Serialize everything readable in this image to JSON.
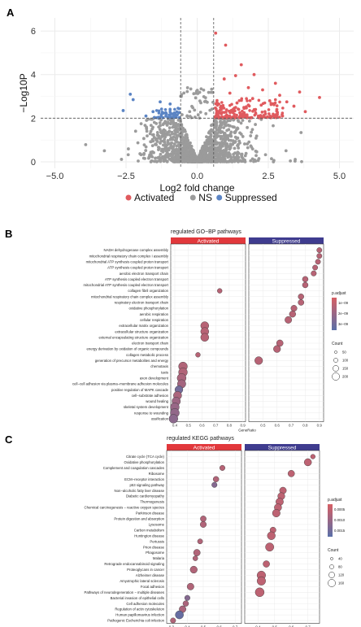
{
  "panels": {
    "a": "A",
    "b": "B",
    "c": "C"
  },
  "colors": {
    "activated": "#e05a5e",
    "ns": "#9b9b9b",
    "suppressed": "#5b84c4",
    "facet_activated": "#e2383c",
    "facet_suppressed": "#3f3c8f",
    "padj_high": "#d65f64",
    "padj_low": "#5a6fa8",
    "grid": "#ebebeb"
  },
  "chart_data": [
    {
      "type": "scatter",
      "xlabel": "Log2 fold change",
      "ylabel": "−Log10P",
      "xlim": [
        -5.5,
        5.5
      ],
      "ylim": [
        -0.3,
        6.6
      ],
      "xticks": [
        "−5.0",
        "−2.5",
        "0.0",
        "2.5",
        "5.0"
      ],
      "xtick_values": [
        -5,
        -2.5,
        0,
        2.5,
        5
      ],
      "yticks": [
        "0",
        "2",
        "4",
        "6"
      ],
      "ytick_values": [
        0,
        2,
        4,
        6
      ],
      "thresholds": {
        "x": [
          -0.58,
          0.58
        ],
        "y": 2
      },
      "grid": true,
      "legend_position": "bottom",
      "legend": [
        {
          "label": "Activated",
          "key": "activated"
        },
        {
          "label": "NS",
          "key": "ns"
        },
        {
          "label": "Suppressed",
          "key": "suppressed"
        }
      ],
      "highlight_points": {
        "activated": [
          [
            0.65,
            5.9
          ],
          [
            1.0,
            5.35
          ],
          [
            1.55,
            4.45
          ],
          [
            2.0,
            4.0
          ],
          [
            1.35,
            3.95
          ],
          [
            0.95,
            3.8
          ],
          [
            2.75,
            3.6
          ],
          [
            1.8,
            3.4
          ],
          [
            2.3,
            3.3
          ],
          [
            3.6,
            3.2
          ],
          [
            1.15,
            3.15
          ],
          [
            2.9,
            3.05
          ],
          [
            4.3,
            2.95
          ],
          [
            1.95,
            2.9
          ],
          [
            2.55,
            2.8
          ],
          [
            3.15,
            2.75
          ],
          [
            1.4,
            2.7
          ],
          [
            0.75,
            2.65
          ],
          [
            2.25,
            2.6
          ],
          [
            3.4,
            2.55
          ],
          [
            0.9,
            2.5
          ],
          [
            1.65,
            2.45
          ],
          [
            2.05,
            2.4
          ],
          [
            2.8,
            2.4
          ],
          [
            1.2,
            2.35
          ],
          [
            3.8,
            2.3
          ],
          [
            0.7,
            2.3
          ],
          [
            1.5,
            2.25
          ],
          [
            2.4,
            2.2
          ],
          [
            0.85,
            2.2
          ],
          [
            1.75,
            2.15
          ],
          [
            2.15,
            2.1
          ],
          [
            3.0,
            2.1
          ],
          [
            1.05,
            2.1
          ],
          [
            0.65,
            2.05
          ],
          [
            1.3,
            2.05
          ],
          [
            2.6,
            2.05
          ],
          [
            1.9,
            2.02
          ]
        ],
        "suppressed": [
          [
            -2.35,
            3.1
          ],
          [
            -2.25,
            2.85
          ],
          [
            -1.3,
            2.75
          ],
          [
            -0.95,
            2.65
          ],
          [
            -2.6,
            2.35
          ],
          [
            -1.55,
            2.3
          ],
          [
            -1.1,
            2.25
          ],
          [
            -0.8,
            2.2
          ],
          [
            -0.7,
            2.15
          ],
          [
            -1.8,
            2.1
          ],
          [
            -0.9,
            2.05
          ],
          [
            -1.2,
            2.02
          ]
        ]
      },
      "ns_description": "dense grey cloud of non-significant genes forming a V shape centred at 0"
    },
    {
      "type": "scatter",
      "title": "regulated GO−BP pathways",
      "facets": [
        "Activated",
        "Suppressed"
      ],
      "xlabel": "GeneRatio",
      "facet_xticks": [
        {
          "labels": [
            "0.4",
            "0.5",
            "0.6",
            "0.7",
            "0.8",
            "0.9"
          ],
          "values": [
            0.4,
            0.5,
            0.6,
            0.7,
            0.8,
            0.9
          ],
          "xlim": [
            0.37,
            0.92
          ]
        },
        {
          "labels": [
            "0.5",
            "0.6",
            "0.7",
            "0.8",
            "0.9"
          ],
          "values": [
            0.5,
            0.6,
            0.7,
            0.8,
            0.9
          ],
          "xlim": [
            0.4,
            0.93
          ]
        }
      ],
      "legend_color_title": "p.adjust",
      "legend_color_ticks": [
        "1e−09",
        "2e−09",
        "3e−09"
      ],
      "legend_size_title": "Count",
      "legend_size_ticks": [
        "50",
        "100",
        "150",
        "200"
      ],
      "categories": [
        "NADH dehydrogenase complex assembly",
        "mitochondrial respiratory chain complex I assembly",
        "mitochondrial ATP synthesis coupled proton transport",
        "ATP synthesis coupled proton transport",
        "aerobic electron transport chain",
        "ATP synthesis coupled electron transport",
        "mitochondrial ATP synthesis coupled electron transport",
        "collagen fibril organization",
        "mitochondrial respiratory chain complex assembly",
        "respiratory electron transport chain",
        "oxidative phosphorylation",
        "aerobic respiration",
        "cellular respiration",
        "extracellular matrix organization",
        "extracellular structure organization",
        "external encapsulating structure organization",
        "electron transport chain",
        "energy derivation by oxidation of organic compounds",
        "collagen metabolic process",
        "generation of precursor metabolites and energy",
        "chemotaxis",
        "taxis",
        "axon development",
        "cell−cell adhesion via plasma−membrane adhesion molecules",
        "positive regulation of MAPK cascade",
        "cell−substrate adhesion",
        "wound healing",
        "skeletal system development",
        "response to wounding",
        "ossification"
      ],
      "points": [
        {
          "facet": 1,
          "row": 0,
          "x": 0.9,
          "count": 40,
          "padj": 0.25
        },
        {
          "facet": 1,
          "row": 1,
          "x": 0.9,
          "count": 40,
          "padj": 0.25
        },
        {
          "facet": 1,
          "row": 2,
          "x": 0.89,
          "count": 40,
          "padj": 0.25
        },
        {
          "facet": 1,
          "row": 3,
          "x": 0.87,
          "count": 40,
          "padj": 0.25
        },
        {
          "facet": 1,
          "row": 4,
          "x": 0.86,
          "count": 45,
          "padj": 0.25
        },
        {
          "facet": 1,
          "row": 5,
          "x": 0.8,
          "count": 55,
          "padj": 0.25
        },
        {
          "facet": 1,
          "row": 6,
          "x": 0.8,
          "count": 55,
          "padj": 0.25
        },
        {
          "facet": 0,
          "row": 7,
          "x": 0.73,
          "count": 30,
          "padj": 0.25
        },
        {
          "facet": 1,
          "row": 8,
          "x": 0.77,
          "count": 55,
          "padj": 0.25
        },
        {
          "facet": 1,
          "row": 9,
          "x": 0.77,
          "count": 60,
          "padj": 0.25
        },
        {
          "facet": 1,
          "row": 10,
          "x": 0.72,
          "count": 70,
          "padj": 0.25
        },
        {
          "facet": 1,
          "row": 11,
          "x": 0.71,
          "count": 80,
          "padj": 0.25
        },
        {
          "facet": 1,
          "row": 12,
          "x": 0.68,
          "count": 100,
          "padj": 0.25
        },
        {
          "facet": 0,
          "row": 13,
          "x": 0.62,
          "count": 160,
          "padj": 0.25
        },
        {
          "facet": 0,
          "row": 14,
          "x": 0.62,
          "count": 160,
          "padj": 0.25
        },
        {
          "facet": 0,
          "row": 15,
          "x": 0.62,
          "count": 160,
          "padj": 0.25
        },
        {
          "facet": 1,
          "row": 16,
          "x": 0.62,
          "count": 90,
          "padj": 0.25
        },
        {
          "facet": 1,
          "row": 17,
          "x": 0.6,
          "count": 110,
          "padj": 0.25
        },
        {
          "facet": 0,
          "row": 18,
          "x": 0.57,
          "count": 30,
          "padj": 0.25
        },
        {
          "facet": 1,
          "row": 19,
          "x": 0.47,
          "count": 150,
          "padj": 0.25
        },
        {
          "facet": 0,
          "row": 20,
          "x": 0.46,
          "count": 200,
          "padj": 0.3
        },
        {
          "facet": 0,
          "row": 21,
          "x": 0.46,
          "count": 200,
          "padj": 0.3
        },
        {
          "facet": 0,
          "row": 22,
          "x": 0.45,
          "count": 210,
          "padj": 0.35
        },
        {
          "facet": 0,
          "row": 23,
          "x": 0.45,
          "count": 180,
          "padj": 0.4
        },
        {
          "facet": 0,
          "row": 24,
          "x": 0.43,
          "count": 150,
          "padj": 0.8
        },
        {
          "facet": 0,
          "row": 25,
          "x": 0.42,
          "count": 170,
          "padj": 0.35
        },
        {
          "facet": 0,
          "row": 26,
          "x": 0.41,
          "count": 180,
          "padj": 0.45
        },
        {
          "facet": 0,
          "row": 27,
          "x": 0.4,
          "count": 200,
          "padj": 0.5
        },
        {
          "facet": 0,
          "row": 28,
          "x": 0.4,
          "count": 210,
          "padj": 0.55
        },
        {
          "facet": 0,
          "row": 29,
          "x": 0.39,
          "count": 200,
          "padj": 0.6
        }
      ]
    },
    {
      "type": "scatter",
      "title": "regulated KEGG pathways",
      "facets": [
        "Activated",
        "Suppressed"
      ],
      "xlabel": "GeneRatio",
      "facet_xticks": [
        {
          "labels": [
            "0.3",
            "0.4",
            "0.5",
            "0.6",
            "0.7"
          ],
          "values": [
            0.3,
            0.4,
            0.5,
            0.6,
            0.7
          ],
          "xlim": [
            0.27,
            0.74
          ]
        },
        {
          "labels": [
            "0.4",
            "0.5",
            "0.6",
            "0.7"
          ],
          "values": [
            0.4,
            0.5,
            0.6,
            0.7
          ],
          "xlim": [
            0.32,
            0.77
          ]
        }
      ],
      "legend_color_title": "p.adjust",
      "legend_color_ticks": [
        "0.0005",
        "0.0010",
        "0.0015"
      ],
      "legend_size_title": "Count",
      "legend_size_ticks": [
        "40",
        "80",
        "120",
        "160"
      ],
      "categories": [
        "Citrate cycle (TCA cycle)",
        "Oxidative phosphorylation",
        "Complement and coagulation cascades",
        "Ribosome",
        "ECM−receptor interaction",
        "p53 signaling pathway",
        "Non−alcoholic fatty liver disease",
        "Diabetic cardiomyopathy",
        "Thermogenesis",
        "Chemical carcinogenesis − reactive oxygen species",
        "Parkinson disease",
        "Protein digestion and absorption",
        "Lysosome",
        "Carbon metabolism",
        "Huntington disease",
        "Pertussis",
        "Prion disease",
        "Phagosome",
        "Malaria",
        "Retrograde endocannabinoid signaling",
        "Proteoglycans in cancer",
        "Alzheimer disease",
        "Amyotrophic lateral sclerosis",
        "Focal adhesion",
        "Pathways of neurodegeneration − multiple diseases",
        "Bacterial invasion of epithelial cells",
        "Cell adhesion molecules",
        "Regulation of actin cytoskeleton",
        "Human papillomavirus infection",
        "Pathogenic Escherichia coli infection"
      ],
      "points": [
        {
          "facet": 1,
          "row": 0,
          "x": 0.73,
          "count": 25,
          "padj": 0.2
        },
        {
          "facet": 1,
          "row": 1,
          "x": 0.7,
          "count": 110,
          "padj": 0.2
        },
        {
          "facet": 0,
          "row": 2,
          "x": 0.62,
          "count": 40,
          "padj": 0.25
        },
        {
          "facet": 1,
          "row": 3,
          "x": 0.6,
          "count": 80,
          "padj": 0.2
        },
        {
          "facet": 0,
          "row": 4,
          "x": 0.58,
          "count": 50,
          "padj": 0.3
        },
        {
          "facet": 0,
          "row": 5,
          "x": 0.57,
          "count": 40,
          "padj": 0.65
        },
        {
          "facet": 1,
          "row": 6,
          "x": 0.55,
          "count": 90,
          "padj": 0.2
        },
        {
          "facet": 1,
          "row": 7,
          "x": 0.54,
          "count": 100,
          "padj": 0.2
        },
        {
          "facet": 1,
          "row": 8,
          "x": 0.53,
          "count": 120,
          "padj": 0.2
        },
        {
          "facet": 1,
          "row": 9,
          "x": 0.52,
          "count": 110,
          "padj": 0.2
        },
        {
          "facet": 1,
          "row": 10,
          "x": 0.51,
          "count": 130,
          "padj": 0.2
        },
        {
          "facet": 0,
          "row": 11,
          "x": 0.5,
          "count": 55,
          "padj": 0.3
        },
        {
          "facet": 0,
          "row": 12,
          "x": 0.5,
          "count": 65,
          "padj": 0.3
        },
        {
          "facet": 1,
          "row": 13,
          "x": 0.49,
          "count": 60,
          "padj": 0.2
        },
        {
          "facet": 1,
          "row": 14,
          "x": 0.48,
          "count": 140,
          "padj": 0.2
        },
        {
          "facet": 0,
          "row": 15,
          "x": 0.48,
          "count": 35,
          "padj": 0.3
        },
        {
          "facet": 1,
          "row": 16,
          "x": 0.47,
          "count": 160,
          "padj": 0.2
        },
        {
          "facet": 0,
          "row": 17,
          "x": 0.46,
          "count": 85,
          "padj": 0.3
        },
        {
          "facet": 0,
          "row": 18,
          "x": 0.45,
          "count": 30,
          "padj": 0.3
        },
        {
          "facet": 1,
          "row": 19,
          "x": 0.45,
          "count": 80,
          "padj": 0.2
        },
        {
          "facet": 0,
          "row": 20,
          "x": 0.44,
          "count": 100,
          "padj": 0.3
        },
        {
          "facet": 1,
          "row": 21,
          "x": 0.42,
          "count": 170,
          "padj": 0.2
        },
        {
          "facet": 1,
          "row": 22,
          "x": 0.42,
          "count": 170,
          "padj": 0.2
        },
        {
          "facet": 0,
          "row": 23,
          "x": 0.42,
          "count": 90,
          "padj": 0.3
        },
        {
          "facet": 1,
          "row": 24,
          "x": 0.41,
          "count": 190,
          "padj": 0.2
        },
        {
          "facet": 0,
          "row": 25,
          "x": 0.4,
          "count": 40,
          "padj": 0.65
        },
        {
          "facet": 0,
          "row": 26,
          "x": 0.39,
          "count": 50,
          "padj": 0.35
        },
        {
          "facet": 0,
          "row": 27,
          "x": 0.37,
          "count": 90,
          "padj": 0.35
        },
        {
          "facet": 0,
          "row": 28,
          "x": 0.35,
          "count": 150,
          "padj": 0.9
        },
        {
          "facet": 0,
          "row": 29,
          "x": 0.31,
          "count": 40,
          "padj": 0.3
        }
      ]
    }
  ]
}
